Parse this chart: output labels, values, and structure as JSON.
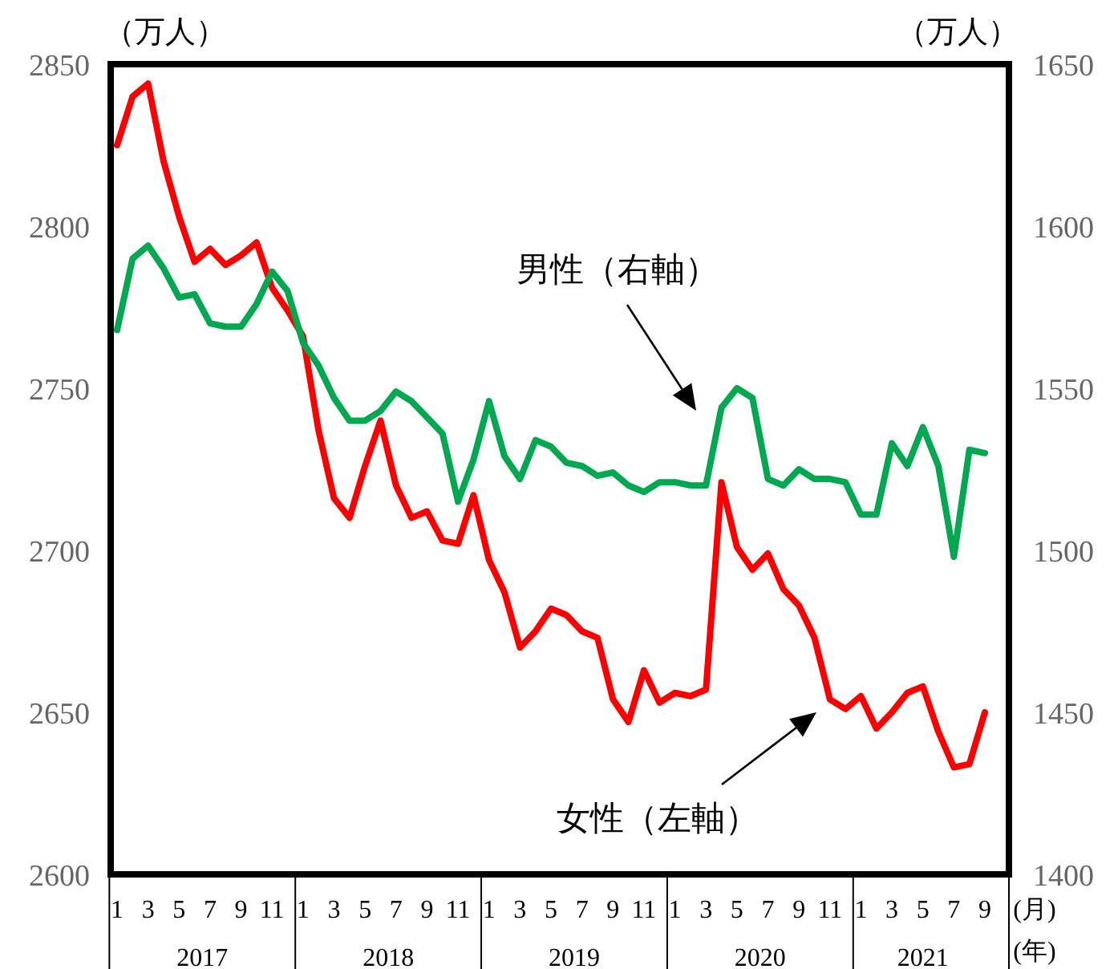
{
  "chart_data": {
    "type": "line",
    "ylabel": "（万人）",
    "y2label": "（万人）",
    "xlabel": "(月)",
    "categories": [
      "1",
      null,
      "3",
      null,
      "5",
      null,
      "7",
      null,
      "9",
      null,
      "11",
      null,
      "1",
      null,
      "3",
      null,
      "5",
      null,
      "7",
      null,
      "9",
      null,
      "11",
      null,
      "1",
      null,
      "3",
      null,
      "5",
      null,
      "7",
      null,
      "9",
      null,
      "11",
      null,
      "1",
      null,
      "3",
      null,
      "5",
      null,
      "7",
      null,
      "9",
      null,
      "11",
      null,
      "1",
      null,
      "3",
      null,
      "5",
      null,
      "7",
      null,
      "9"
    ],
    "ylim": [
      2600,
      2850
    ],
    "yticks": [
      2600,
      2650,
      2700,
      2750,
      2800,
      2850
    ],
    "y2lim": [
      1400,
      1650
    ],
    "y2ticks": [
      1400,
      1450,
      1500,
      1550,
      1600,
      1650
    ],
    "series": [
      {
        "color": "#ff0000",
        "values": [
          2825,
          2840,
          2844,
          2820,
          2803,
          2789,
          2793,
          2788,
          2791,
          2795,
          2781,
          2774,
          2766,
          2737,
          2716,
          2710,
          2726,
          2740,
          2720,
          2710,
          2712,
          2703,
          2702,
          2717,
          2697,
          2687,
          2670,
          2675,
          2682,
          2680,
          2675,
          2673,
          2654,
          2647,
          2663,
          2653,
          2656,
          2655,
          2657,
          2721,
          2701,
          2694,
          2699,
          2688,
          2683,
          2673,
          2654,
          2651,
          2655,
          2645,
          2650,
          2656,
          2658,
          2644,
          2633,
          2634,
          2650
        ]
      },
      {
        "color": "#00a84f",
        "axis": "y2",
        "values": [
          1568,
          1590,
          1594,
          1587,
          1578,
          1579,
          1570,
          1569,
          1569,
          1576,
          1586,
          1580,
          1564,
          1557,
          1547,
          1540,
          1540,
          1543,
          1549,
          1546,
          1541,
          1536,
          1515,
          1528,
          1546,
          1529,
          1522,
          1534,
          1532,
          1527,
          1526,
          1523,
          1524,
          1520,
          1518,
          1521,
          1521,
          1520,
          1520,
          1544,
          1550,
          1547,
          1522,
          1520,
          1525,
          1522,
          1522,
          1521,
          1511,
          1511,
          1533,
          1526,
          1538,
          1526,
          1498,
          1531,
          1530
        ]
      }
    ],
    "annotations": [
      "男性（右軸）",
      "女性（左軸）",
      "2017",
      "2018",
      "2019",
      "2020",
      "2021",
      "(年)"
    ]
  }
}
